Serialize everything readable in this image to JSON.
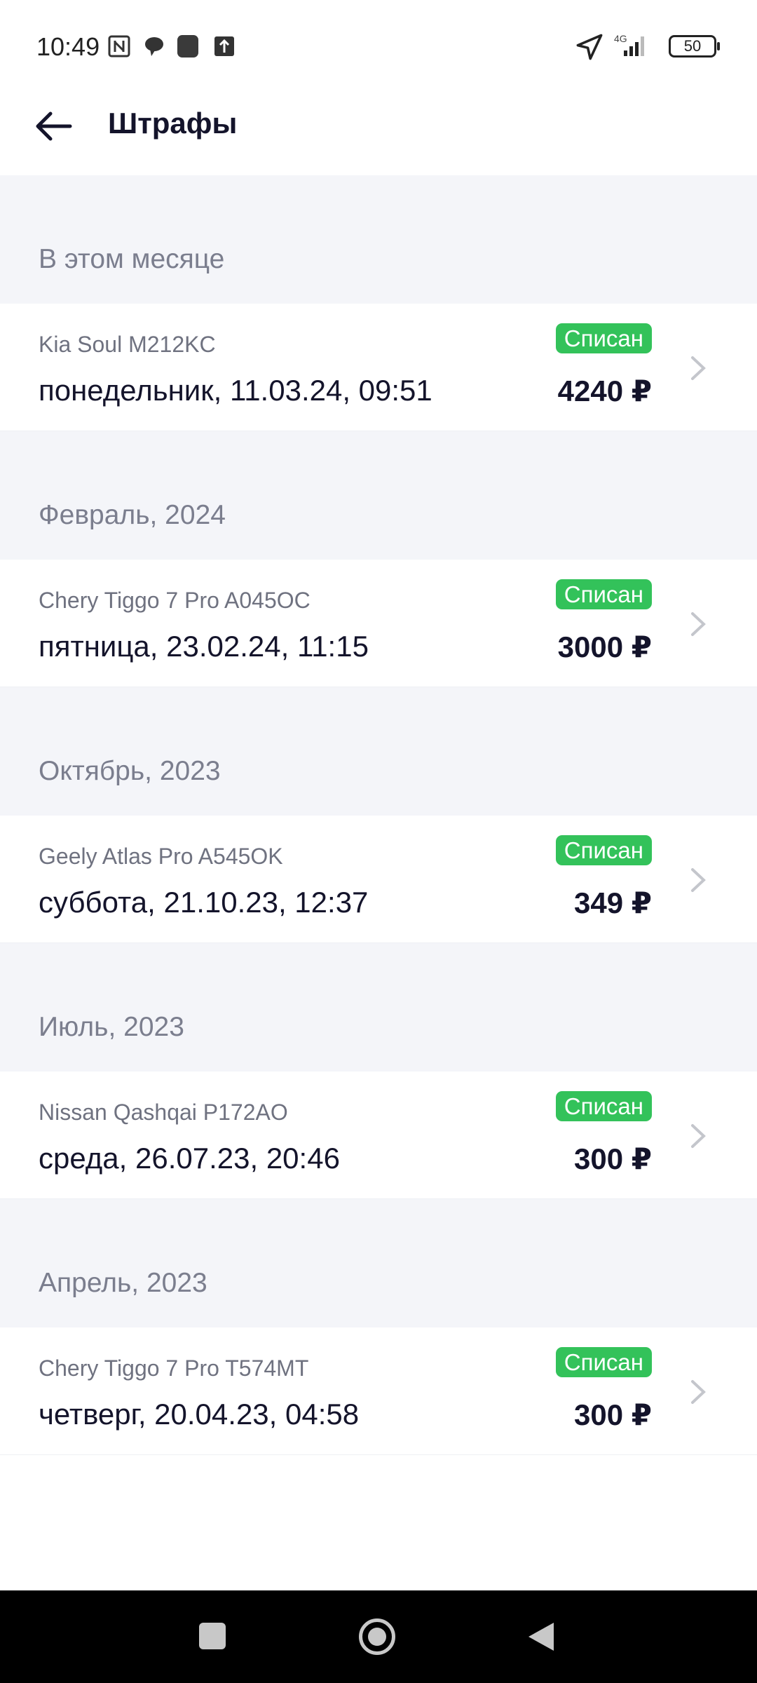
{
  "status_bar": {
    "time": "10:49",
    "battery": "50",
    "network": "4G",
    "icons": [
      "nfc-icon",
      "chat-icon",
      "app-icon",
      "upload-icon",
      "location-icon",
      "signal-icon",
      "battery-icon"
    ]
  },
  "header": {
    "title": "Штрафы",
    "back_icon": "arrow-left-icon"
  },
  "groups": [
    {
      "label": "В этом месяце",
      "item": {
        "car": "Kia Soul M212KC",
        "date": "понедельник, 11.03.24, 09:51",
        "status": "Списан",
        "amount": "4240 ₽"
      }
    },
    {
      "label": "Февраль, 2024",
      "item": {
        "car": "Chery Tiggo 7 Pro A045OC",
        "date": "пятница, 23.02.24, 11:15",
        "status": "Списан",
        "amount": "3000 ₽"
      }
    },
    {
      "label": "Октябрь, 2023",
      "item": {
        "car": "Geely Atlas Pro A545OK",
        "date": "суббота, 21.10.23, 12:37",
        "status": "Списан",
        "amount": "349 ₽"
      }
    },
    {
      "label": "Июль, 2023",
      "item": {
        "car": "Nissan Qashqai P172AO",
        "date": "среда, 26.07.23, 20:46",
        "status": "Списан",
        "amount": "300 ₽"
      }
    },
    {
      "label": "Апрель, 2023",
      "item": {
        "car": "Chery Tiggo 7 Pro T574MT",
        "date": "четверг, 20.04.23, 04:58",
        "status": "Списан",
        "amount": "300 ₽"
      }
    }
  ],
  "colors": {
    "badge": "#33c25a",
    "section_bg": "#f4f5f9",
    "text": "#14142b",
    "muted": "#7b7e8e"
  },
  "nav_bar": {
    "icons": [
      "recents-square-icon",
      "home-circle-icon",
      "back-triangle-icon"
    ]
  }
}
